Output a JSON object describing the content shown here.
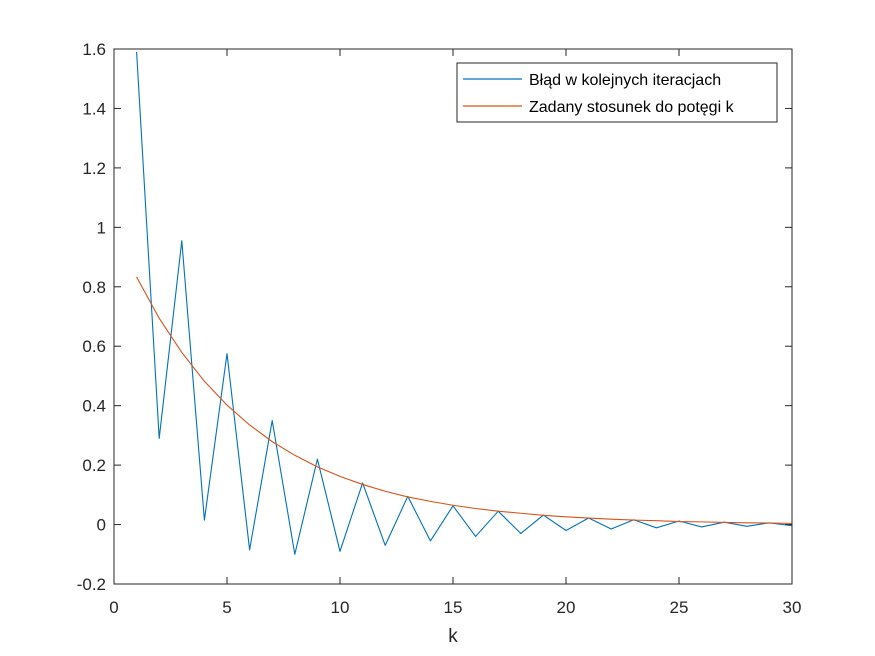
{
  "chart_data": {
    "type": "line",
    "title": "",
    "xlabel": "k",
    "ylabel": "",
    "xlim": [
      0,
      30
    ],
    "ylim": [
      -0.2,
      1.6
    ],
    "xticks": [
      0,
      5,
      10,
      15,
      20,
      25,
      30
    ],
    "yticks": [
      -0.2,
      0,
      0.2,
      0.4,
      0.6,
      0.8,
      1,
      1.2,
      1.4,
      1.6
    ],
    "xtick_labels": [
      "0",
      "5",
      "10",
      "15",
      "20",
      "25",
      "30"
    ],
    "ytick_labels": [
      "-0.2",
      "0",
      "0.2",
      "0.4",
      "0.6",
      "0.8",
      "1",
      "1.2",
      "1.4",
      "1.6"
    ],
    "grid": false,
    "legend_position": "top-right",
    "series": [
      {
        "name": "Błąd w kolejnych iteracjach",
        "color": "#0072BD",
        "x": [
          1,
          2,
          3,
          4,
          5,
          6,
          7,
          8,
          9,
          10,
          11,
          12,
          13,
          14,
          15,
          16,
          17,
          18,
          19,
          20,
          21,
          22,
          23,
          24,
          25,
          26,
          27,
          28,
          29,
          30
        ],
        "values": [
          1.59,
          0.29,
          0.955,
          0.015,
          0.575,
          -0.085,
          0.35,
          -0.1,
          0.22,
          -0.09,
          0.14,
          -0.07,
          0.095,
          -0.055,
          0.063,
          -0.04,
          0.045,
          -0.03,
          0.032,
          -0.02,
          0.022,
          -0.015,
          0.016,
          -0.011,
          0.012,
          -0.008,
          0.008,
          -0.006,
          0.006,
          -0.004
        ]
      },
      {
        "name": "Zadany stosunek do potęgi k",
        "color": "#D95319",
        "x": [
          1,
          2,
          3,
          4,
          5,
          6,
          7,
          8,
          9,
          10,
          11,
          12,
          13,
          14,
          15,
          16,
          17,
          18,
          19,
          20,
          21,
          22,
          23,
          24,
          25,
          26,
          27,
          28,
          29,
          30
        ],
        "values": [
          0.833,
          0.694,
          0.579,
          0.482,
          0.402,
          0.335,
          0.279,
          0.233,
          0.194,
          0.162,
          0.135,
          0.112,
          0.093,
          0.078,
          0.065,
          0.054,
          0.045,
          0.038,
          0.031,
          0.026,
          0.022,
          0.018,
          0.015,
          0.013,
          0.01,
          0.009,
          0.007,
          0.006,
          0.005,
          0.004
        ]
      }
    ]
  }
}
